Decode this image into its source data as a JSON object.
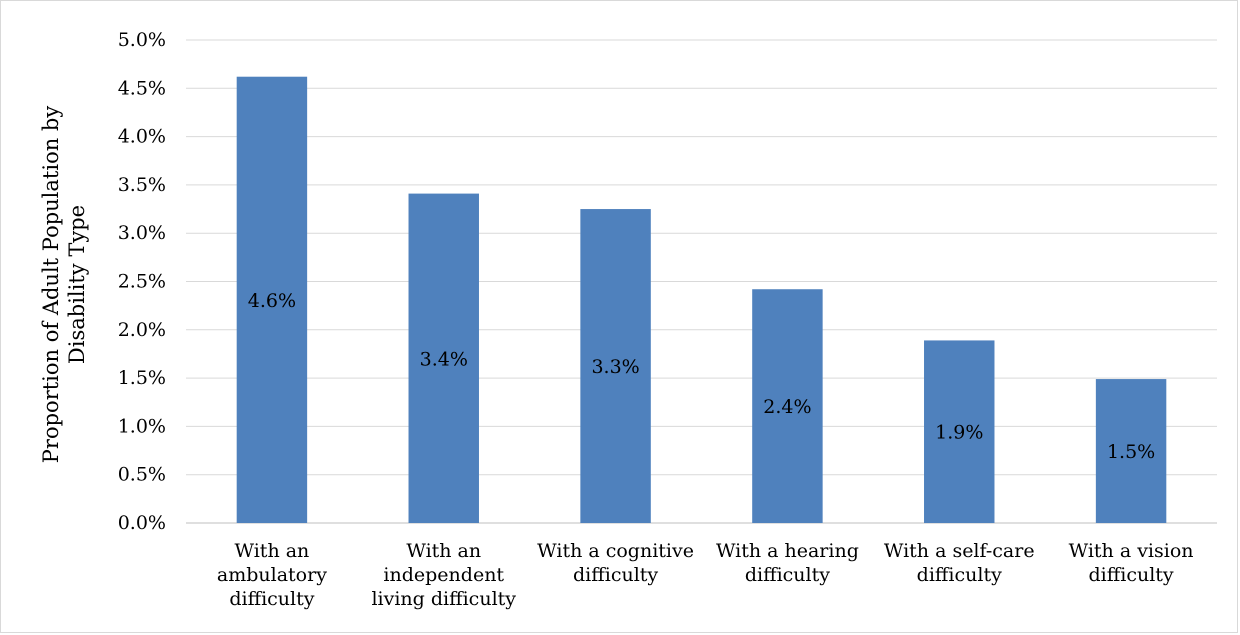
{
  "chart_data": {
    "type": "bar",
    "categories": [
      [
        "With an",
        "ambulatory",
        "difficulty"
      ],
      [
        "With an",
        "independent",
        "living difficulty"
      ],
      [
        "With a cognitive",
        "difficulty"
      ],
      [
        "With a hearing",
        "difficulty"
      ],
      [
        "With a self-care",
        "difficulty"
      ],
      [
        "With a vision",
        "difficulty"
      ]
    ],
    "values": [
      4.62,
      3.41,
      3.25,
      2.42,
      1.89,
      1.49
    ],
    "data_labels": [
      "4.6%",
      "3.4%",
      "3.3%",
      "2.4%",
      "1.9%",
      "1.5%"
    ],
    "ylabel_lines": [
      "Proportion of Adult Population by",
      "Disability Type"
    ],
    "yticks": [
      {
        "value": 0.0,
        "label": "0.0%"
      },
      {
        "value": 0.5,
        "label": "0.5%"
      },
      {
        "value": 1.0,
        "label": "1.0%"
      },
      {
        "value": 1.5,
        "label": "1.5%"
      },
      {
        "value": 2.0,
        "label": "2.0%"
      },
      {
        "value": 2.5,
        "label": "2.5%"
      },
      {
        "value": 3.0,
        "label": "3.0%"
      },
      {
        "value": 3.5,
        "label": "3.5%"
      },
      {
        "value": 4.0,
        "label": "4.0%"
      },
      {
        "value": 4.5,
        "label": "4.5%"
      },
      {
        "value": 5.0,
        "label": "5.0%"
      }
    ],
    "ylim": [
      0,
      5.0
    ],
    "grid": true,
    "colors": {
      "bar": "#4f81bd",
      "grid": "#d9d9d9",
      "axis": "#bfbfbf"
    }
  }
}
